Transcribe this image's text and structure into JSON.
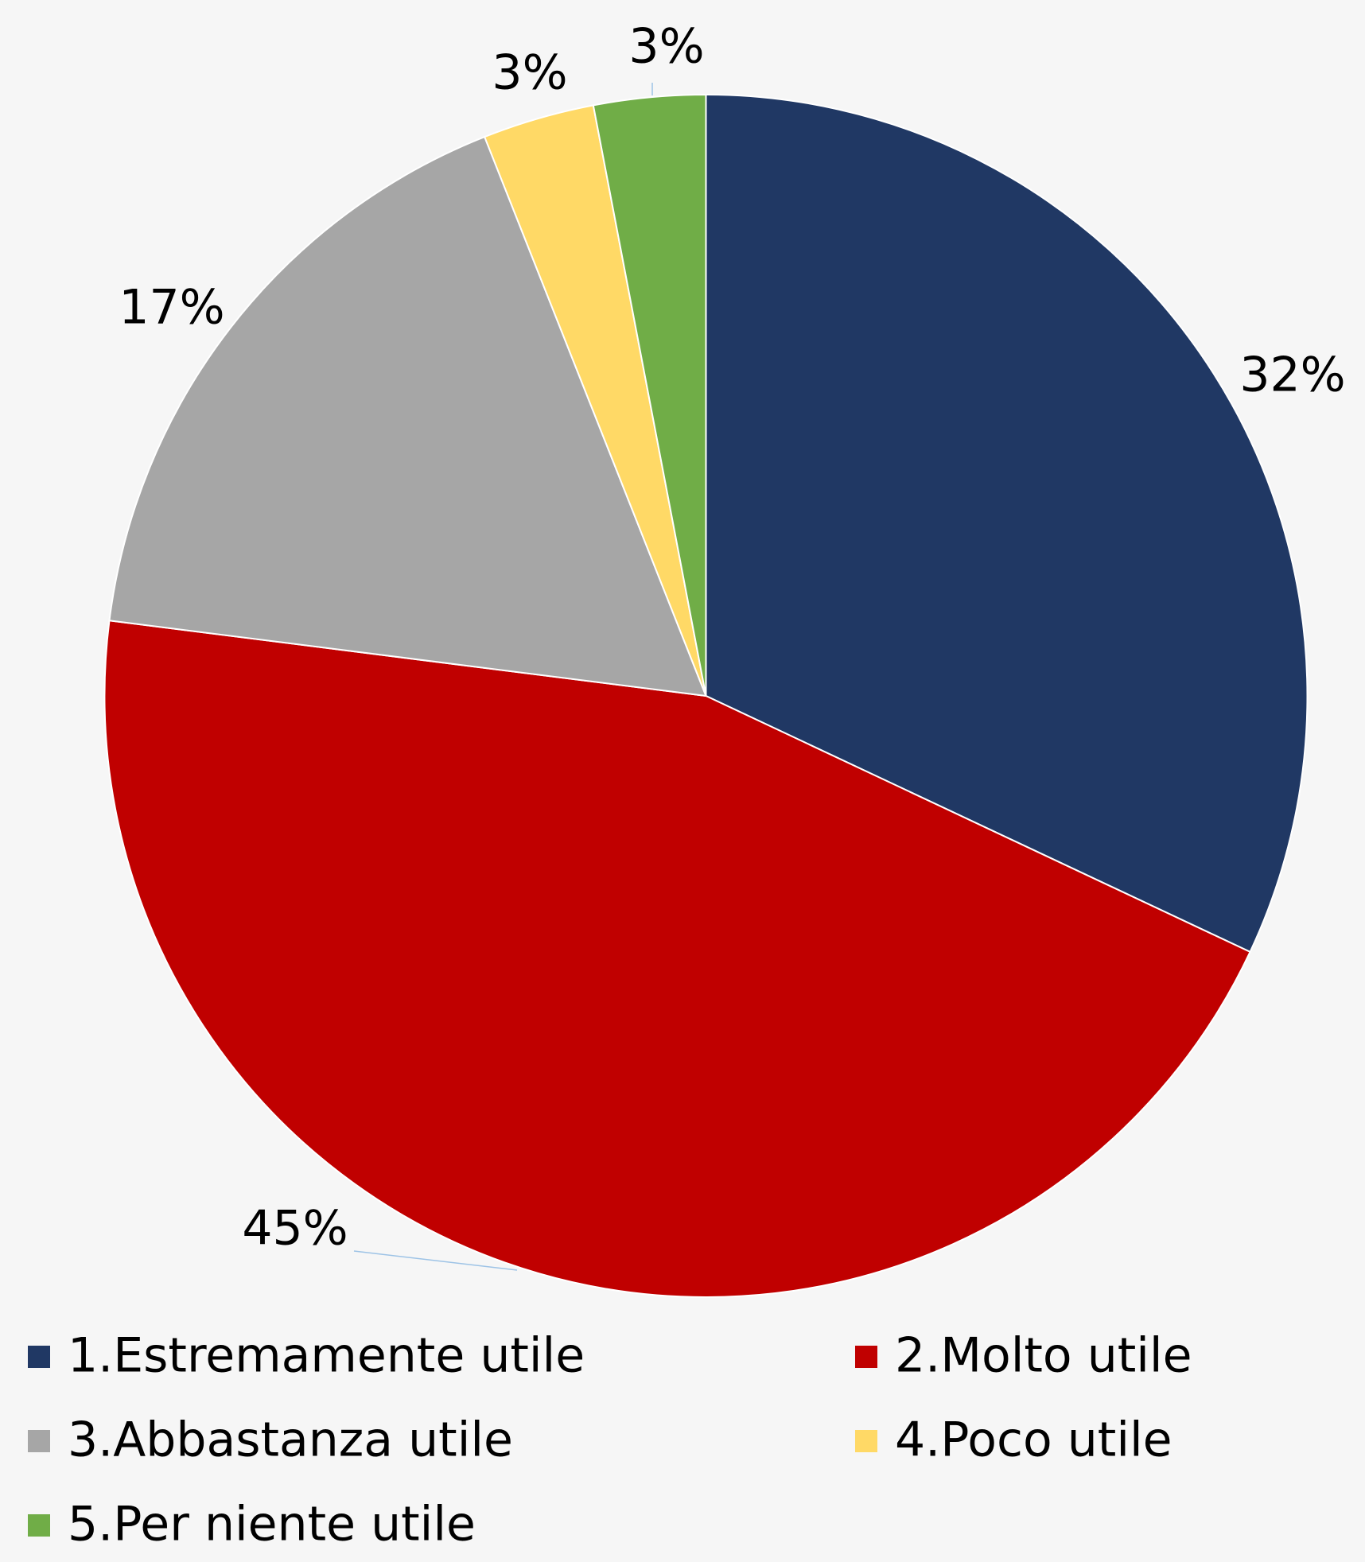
{
  "chart_data": {
    "type": "pie",
    "categories": [
      "1.Estremamente utile",
      "2.Molto utile",
      "3.Abbastanza utile",
      "4.Poco utile",
      "5.Per niente utile"
    ],
    "values": [
      32,
      45,
      17,
      3,
      3
    ],
    "value_labels": [
      "32%",
      "45%",
      "17%",
      "3%",
      "3%"
    ],
    "colors": [
      "#203864",
      "#c00000",
      "#a6a6a6",
      "#ffd966",
      "#70ad47"
    ],
    "legend": "bottom"
  }
}
